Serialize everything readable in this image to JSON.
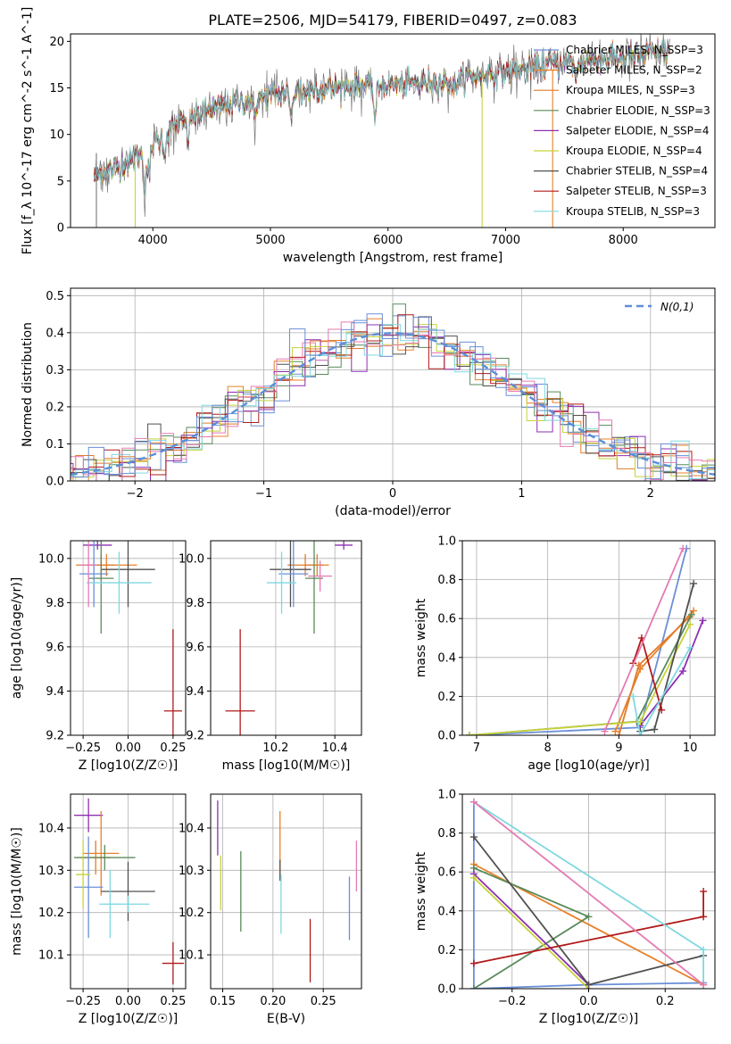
{
  "figure": {
    "title": "PLATE=2506, MJD=54179, FIBERID=0497, z=0.083"
  },
  "colors": [
    "#6a8fd8",
    "#e8812a",
    "#e07b2c",
    "#5a8a5a",
    "#8e2fb0",
    "#c8d23a",
    "#505050",
    "#b01a1a",
    "#7fd8e0",
    "#e57ab2"
  ],
  "legend": [
    {
      "label": "Chabrier MILES, N_SSP=3",
      "color": "#6a8fd8"
    },
    {
      "label": "Salpeter MILES, N_SSP=2",
      "color": "#e8812a"
    },
    {
      "label": "Kroupa MILES, N_SSP=3",
      "color": "#e07b2c"
    },
    {
      "label": "Chabrier ELODIE, N_SSP=3",
      "color": "#5a8a5a"
    },
    {
      "label": "Salpeter ELODIE, N_SSP=4",
      "color": "#8e2fb0"
    },
    {
      "label": "Kroupa ELODIE, N_SSP=4",
      "color": "#c8d23a"
    },
    {
      "label": "Chabrier STELIB, N_SSP=4",
      "color": "#505050"
    },
    {
      "label": "Salpeter STELIB, N_SSP=3",
      "color": "#b01a1a"
    },
    {
      "label": "Kroupa STELIB, N_SSP=3",
      "color": "#7fd8e0"
    }
  ],
  "chart_data": [
    {
      "type": "line",
      "id": "spectrum",
      "xlabel": "wavelength [Angstrom, rest frame]",
      "ylabel": "Flux [f_λ 10^-17 erg cm^-2 s^-1 A^-1]",
      "xlim": [
        3300,
        8780
      ],
      "ylim": [
        0,
        20.8
      ],
      "xticks": [
        4000,
        5000,
        6000,
        7000,
        8000
      ],
      "yticks": [
        0,
        5,
        10,
        15,
        20
      ],
      "continuum": {
        "x": [
          3500,
          3600,
          3800,
          4000,
          4200,
          4500,
          5000,
          5500,
          6000,
          6500,
          7000,
          7500,
          8000,
          8400
        ],
        "y": [
          5.5,
          6.0,
          7.0,
          9.0,
          11.0,
          12.8,
          14.2,
          15.0,
          15.3,
          15.7,
          16.8,
          17.7,
          18.2,
          19.0
        ]
      },
      "grid": false
    },
    {
      "type": "line",
      "id": "residuals",
      "xlabel": "(data-model)/error",
      "ylabel": "Normed distribution",
      "xlim": [
        -2.5,
        2.5
      ],
      "ylim": [
        0,
        0.52
      ],
      "xticks": [
        -2,
        -1,
        0,
        1,
        2
      ],
      "yticks": [
        0.0,
        0.1,
        0.2,
        0.3,
        0.4,
        0.5
      ],
      "legend_entry": "N(0,1)",
      "grid": true
    },
    {
      "type": "scatter",
      "id": "age-vs-Z",
      "xlabel": "Z [log10(Z/Z☉)]",
      "ylabel": "age [log10(age/yr)]",
      "xlim": [
        -0.32,
        0.32
      ],
      "ylim": [
        9.2,
        10.08
      ],
      "xticks": [
        -0.25,
        0.0,
        0.25
      ],
      "yticks": [
        9.2,
        9.4,
        9.6,
        9.8,
        10.0
      ],
      "points": [
        {
          "x": 0.25,
          "y": 9.31,
          "xerr": 0.05,
          "yerr": 0.37,
          "color": "#b01a1a"
        },
        {
          "x": -0.17,
          "y": 10.06,
          "xerr": 0.08,
          "yerr": 0.02,
          "color": "#8e2fb0"
        },
        {
          "x": -0.12,
          "y": 9.97,
          "xerr": 0.17,
          "yerr": 0.05,
          "color": "#e8812a"
        },
        {
          "x": -0.15,
          "y": 9.97,
          "xerr": 0.08,
          "yerr": 0.05,
          "color": "#e07b2c"
        },
        {
          "x": 0.0,
          "y": 9.95,
          "xerr": 0.15,
          "yerr": 0.17,
          "color": "#505050"
        },
        {
          "x": -0.15,
          "y": 9.91,
          "xerr": 0.07,
          "yerr": 0.25,
          "color": "#5a8a5a"
        },
        {
          "x": -0.19,
          "y": 9.93,
          "xerr": 0.08,
          "yerr": 0.15,
          "color": "#6a8fd8"
        },
        {
          "x": -0.05,
          "y": 9.89,
          "xerr": 0.18,
          "yerr": 0.14,
          "color": "#7fd8e0"
        },
        {
          "x": -0.22,
          "y": 9.97,
          "xerr": 0.05,
          "yerr": 0.19,
          "color": "#e57ab2"
        }
      ],
      "grid": true
    },
    {
      "type": "scatter",
      "id": "age-vs-mass",
      "xlabel": "mass [log10(M/M☉)]",
      "ylabel": "",
      "xlim": [
        9.98,
        10.49
      ],
      "ylim": [
        9.2,
        10.08
      ],
      "xticks": [
        10.2,
        10.4
      ],
      "yticks": [
        9.2,
        9.4,
        9.6,
        9.8,
        10.0
      ],
      "points": [
        {
          "x": 10.08,
          "y": 9.31,
          "xerr": 0.05,
          "yerr": 0.37,
          "color": "#b01a1a"
        },
        {
          "x": 10.43,
          "y": 10.06,
          "xerr": 0.03,
          "yerr": 0.02,
          "color": "#8e2fb0"
        },
        {
          "x": 10.34,
          "y": 9.97,
          "xerr": 0.04,
          "yerr": 0.05,
          "color": "#e8812a"
        },
        {
          "x": 10.3,
          "y": 9.97,
          "xerr": 0.06,
          "yerr": 0.05,
          "color": "#e07b2c"
        },
        {
          "x": 10.25,
          "y": 9.95,
          "xerr": 0.07,
          "yerr": 0.17,
          "color": "#505050"
        },
        {
          "x": 10.33,
          "y": 9.91,
          "xerr": 0.03,
          "yerr": 0.25,
          "color": "#5a8a5a"
        },
        {
          "x": 10.26,
          "y": 9.93,
          "xerr": 0.05,
          "yerr": 0.15,
          "color": "#6a8fd8"
        },
        {
          "x": 10.22,
          "y": 9.89,
          "xerr": 0.05,
          "yerr": 0.14,
          "color": "#7fd8e0"
        },
        {
          "x": 10.35,
          "y": 9.92,
          "xerr": 0.04,
          "yerr": 0.07,
          "color": "#e57ab2"
        }
      ],
      "grid": true
    },
    {
      "type": "line",
      "id": "mass-weight-vs-age",
      "xlabel": "age [log10(age/yr)]",
      "ylabel": "mass weight",
      "xlim": [
        6.8,
        10.35
      ],
      "ylim": [
        0,
        1.0
      ],
      "xticks": [
        7,
        8,
        9,
        10
      ],
      "yticks": [
        0.0,
        0.2,
        0.4,
        0.6,
        0.8,
        1.0
      ],
      "series": [
        {
          "color": "#6a8fd8",
          "x": [
            6.9,
            9.3,
            9.95
          ],
          "y": [
            0.0,
            0.04,
            0.96
          ]
        },
        {
          "color": "#e8812a",
          "x": [
            8.95,
            9.3,
            10.05
          ],
          "y": [
            0.02,
            0.34,
            0.64
          ]
        },
        {
          "color": "#e07b2c",
          "x": [
            9.0,
            9.28,
            10.0
          ],
          "y": [
            0.0,
            0.36,
            0.61
          ]
        },
        {
          "color": "#5a8a5a",
          "x": [
            6.9,
            9.25,
            10.02
          ],
          "y": [
            0.0,
            0.07,
            0.62
          ]
        },
        {
          "color": "#8e2fb0",
          "x": [
            9.3,
            9.9,
            10.18
          ],
          "y": [
            0.05,
            0.33,
            0.59
          ]
        },
        {
          "color": "#c8d23a",
          "x": [
            6.9,
            9.3,
            10.0
          ],
          "y": [
            0.0,
            0.07,
            0.57
          ]
        },
        {
          "color": "#505050",
          "x": [
            9.3,
            9.5,
            10.05
          ],
          "y": [
            0.02,
            0.03,
            0.78
          ]
        },
        {
          "color": "#b01a1a",
          "x": [
            9.2,
            9.32,
            9.6
          ],
          "y": [
            0.37,
            0.5,
            0.13
          ]
        },
        {
          "color": "#7fd8e0",
          "x": [
            9.2,
            9.3,
            10.0
          ],
          "y": [
            0.2,
            0.0,
            0.45
          ]
        },
        {
          "color": "#e57ab2",
          "x": [
            8.8,
            9.9
          ],
          "y": [
            0.02,
            0.96
          ]
        }
      ],
      "grid": true
    },
    {
      "type": "scatter",
      "id": "mass-vs-Z",
      "xlabel": "Z [log10(Z/Z☉)]",
      "ylabel": "mass [log10(M/M☉)]",
      "xlim": [
        -0.32,
        0.32
      ],
      "ylim": [
        10.02,
        10.48
      ],
      "xticks": [
        -0.25,
        0.0,
        0.25
      ],
      "yticks": [
        10.1,
        10.2,
        10.3,
        10.4
      ],
      "points": [
        {
          "x": 0.25,
          "y": 10.08,
          "xerr": 0.06,
          "yerr": 0.05,
          "color": "#b01a1a"
        },
        {
          "x": -0.22,
          "y": 10.43,
          "xerr": 0.08,
          "yerr": 0.04,
          "color": "#8e2fb0"
        },
        {
          "x": -0.15,
          "y": 10.34,
          "xerr": 0.1,
          "yerr": 0.1,
          "color": "#e8812a"
        },
        {
          "x": -0.18,
          "y": 10.33,
          "xerr": 0.08,
          "yerr": 0.04,
          "color": "#e07b2c"
        },
        {
          "x": -0.13,
          "y": 10.33,
          "xerr": 0.17,
          "yerr": 0.03,
          "color": "#5a8a5a"
        },
        {
          "x": -0.22,
          "y": 10.26,
          "xerr": 0.08,
          "yerr": 0.12,
          "color": "#6a8fd8"
        },
        {
          "x": 0.0,
          "y": 10.25,
          "xerr": 0.15,
          "yerr": 0.07,
          "color": "#505050"
        },
        {
          "x": -0.1,
          "y": 10.22,
          "xerr": 0.06,
          "yerr": 0.08,
          "color": "#7fd8e0"
        },
        {
          "x": 0.0,
          "y": 10.22,
          "xerr": 0.12,
          "yerr": 0.02,
          "color": "#7fd8e0"
        },
        {
          "x": -0.25,
          "y": 10.29,
          "xerr": 0.04,
          "yerr": 0.08,
          "color": "#c8d23a"
        }
      ],
      "grid": true
    },
    {
      "type": "scatter",
      "id": "mass-vs-EBV",
      "xlabel": "E(B-V)",
      "ylabel": "",
      "xlim": [
        0.138,
        0.288
      ],
      "ylim": [
        10.02,
        10.48
      ],
      "xticks": [
        0.15,
        0.2,
        0.25
      ],
      "yticks": [
        10.1,
        10.2,
        10.3,
        10.4
      ],
      "points": [
        {
          "x": 0.145,
          "y": 10.4,
          "yerr": 0.065,
          "color": "#8e2fb0"
        },
        {
          "x": 0.148,
          "y": 10.27,
          "yerr": 0.065,
          "color": "#c8d23a"
        },
        {
          "x": 0.168,
          "y": 10.25,
          "yerr": 0.095,
          "color": "#5a8a5a"
        },
        {
          "x": 0.207,
          "y": 10.36,
          "yerr": 0.08,
          "color": "#e8812a"
        },
        {
          "x": 0.207,
          "y": 10.3,
          "yerr": 0.025,
          "color": "#505050"
        },
        {
          "x": 0.208,
          "y": 10.22,
          "yerr": 0.07,
          "color": "#7fd8e0"
        },
        {
          "x": 0.237,
          "y": 10.11,
          "yerr": 0.075,
          "color": "#b01a1a"
        },
        {
          "x": 0.276,
          "y": 10.21,
          "yerr": 0.075,
          "color": "#6a8fd8"
        },
        {
          "x": 0.283,
          "y": 10.31,
          "yerr": 0.06,
          "color": "#e57ab2"
        }
      ],
      "grid": true
    },
    {
      "type": "line",
      "id": "mass-weight-vs-Z",
      "xlabel": "Z [log10(Z/Z☉)]",
      "ylabel": "mass weight",
      "xlim": [
        -0.33,
        0.33
      ],
      "ylim": [
        0,
        1.0
      ],
      "xticks": [
        -0.2,
        0.0,
        0.2
      ],
      "yticks": [
        0.0,
        0.2,
        0.4,
        0.6,
        0.8,
        1.0
      ],
      "series": [
        {
          "color": "#6a8fd8",
          "x": [
            -0.3,
            -0.3,
            0.0,
            0.3
          ],
          "y": [
            0.96,
            0.0,
            0.02,
            0.03
          ]
        },
        {
          "color": "#e8812a",
          "x": [
            -0.3,
            0.3
          ],
          "y": [
            0.64,
            0.02
          ]
        },
        {
          "color": "#5a8a5a",
          "x": [
            -0.3,
            0.0,
            -0.3
          ],
          "y": [
            0.0,
            0.37,
            0.62
          ]
        },
        {
          "color": "#8e2fb0",
          "x": [
            -0.3,
            0.0
          ],
          "y": [
            0.59,
            0.02
          ]
        },
        {
          "color": "#c8d23a",
          "x": [
            -0.3,
            0.0
          ],
          "y": [
            0.57,
            0.0
          ]
        },
        {
          "color": "#505050",
          "x": [
            -0.3,
            0.0,
            0.3
          ],
          "y": [
            0.78,
            0.02,
            0.17
          ]
        },
        {
          "color": "#b01a1a",
          "x": [
            -0.3,
            0.3,
            0.3
          ],
          "y": [
            0.13,
            0.37,
            0.5
          ]
        },
        {
          "color": "#7fd8e0",
          "x": [
            -0.3,
            0.3,
            0.3
          ],
          "y": [
            0.96,
            0.2,
            0.0
          ]
        },
        {
          "color": "#e57ab2",
          "x": [
            -0.3,
            0.3
          ],
          "y": [
            0.96,
            0.02
          ]
        }
      ],
      "grid": true
    }
  ]
}
